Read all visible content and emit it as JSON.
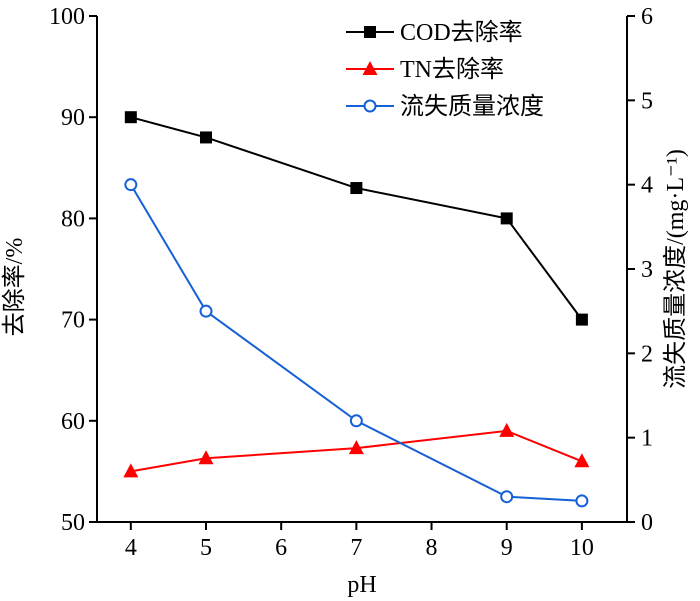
{
  "chart_data": {
    "type": "line",
    "xlabel": "pH",
    "ylabel_left": "去除率/%",
    "ylabel_right": "流失质量浓度/(mg·L⁻¹)",
    "x_ticks": [
      4,
      5,
      6,
      7,
      8,
      9,
      10
    ],
    "y_left_ticks": [
      50,
      60,
      70,
      80,
      90,
      100
    ],
    "y_right_ticks": [
      0,
      1,
      2,
      3,
      4,
      5,
      6
    ],
    "xlim": [
      3.55,
      10.6
    ],
    "ylim_left": [
      50,
      100
    ],
    "ylim_right": [
      0,
      6
    ],
    "legend_position": "top-right",
    "grid": false,
    "series": [
      {
        "name": "COD去除率",
        "axis": "left",
        "marker": "square",
        "color": "#000000",
        "x": [
          4,
          5,
          7,
          9,
          10
        ],
        "values": [
          90,
          88,
          83,
          80,
          70
        ]
      },
      {
        "name": "TN去除率",
        "axis": "left",
        "marker": "triangle",
        "color": "#ff0000",
        "x": [
          4,
          5,
          7,
          9,
          10
        ],
        "values": [
          55,
          56.3,
          57.3,
          59,
          56
        ]
      },
      {
        "name": "流失质量浓度",
        "axis": "right",
        "marker": "circle",
        "color": "#1560d6",
        "x": [
          4,
          5,
          7,
          9,
          10
        ],
        "values": [
          4.0,
          2.5,
          1.2,
          0.3,
          0.25
        ]
      }
    ]
  }
}
